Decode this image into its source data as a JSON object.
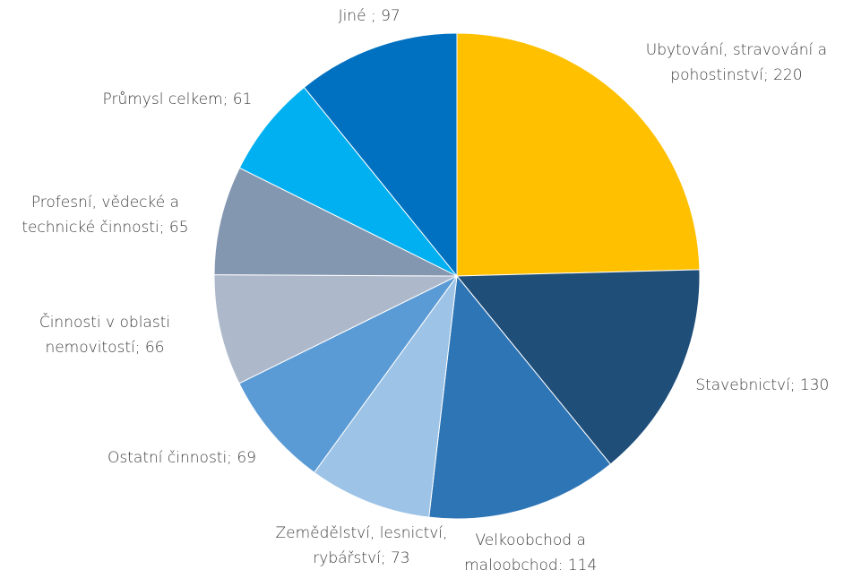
{
  "chart_data": {
    "type": "pie",
    "categories": [
      "Ubytování, stravování a pohostinství; 220",
      "Stavebnictví; 130",
      "Velkoobchod a maloobchod; 114",
      "Zemědělství, lesnictví, rybářství; 73",
      "Ostatní činnosti; 69",
      "Činnosti v oblasti nemovitostí; 66",
      "Profesní, vědecké a technické činnosti; 65",
      "Průmysl celkem; 61",
      "Jiné ; 97"
    ],
    "values": [
      220,
      130,
      114,
      73,
      69,
      66,
      65,
      61,
      97
    ],
    "colors": [
      "#ffc000",
      "#1f4e79",
      "#2e75b6",
      "#9dc3e6",
      "#5b9bd5",
      "#adb9ca",
      "#8497b0",
      "#00b0f0",
      "#0070c0"
    ]
  }
}
